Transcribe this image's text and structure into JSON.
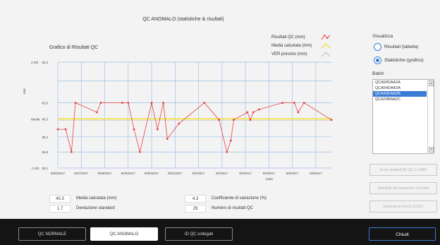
{
  "window": {
    "title": "QC ANOMALO (statistiche & risultati)"
  },
  "graph": {
    "title": "Grafico di Risultati QC",
    "y_unit": "mm",
    "x_axis_label": "Data"
  },
  "legend": {
    "items": [
      {
        "label": "Risultati QC (mm)",
        "color": "#e84040"
      },
      {
        "label": "Media calcolata (mm)",
        "color": "#f0e040"
      },
      {
        "label": "VER previsto (mm)",
        "color": "#cccccc"
      }
    ]
  },
  "sidebar": {
    "view_label": "Visualizza",
    "view_options": [
      {
        "label": "Risultati (tabella)",
        "selected": false
      },
      {
        "label": "Statistiche (grafico)",
        "selected": true
      }
    ],
    "batch_label": "Batch",
    "batches": [
      {
        "label": "QCA58SAA2A",
        "selected": false
      },
      {
        "label": "QCA54DAA2A",
        "selected": false
      },
      {
        "label": "QCA42EAA2B",
        "selected": true
      },
      {
        "label": "QCA20BAA2C",
        "selected": false
      }
    ],
    "buttons": [
      {
        "label": "Invia risultati IQ QC a LIMS"
      },
      {
        "label": "Risultati del paziente correlati"
      },
      {
        "label": "Esporta in Excel (CSV)"
      }
    ]
  },
  "stats": {
    "mean": {
      "value": "40.3",
      "label": "Media calcolata (mm)"
    },
    "sd": {
      "value": "1.7",
      "label": "Deviazione standard"
    },
    "cv": {
      "value": "4.3",
      "label": "Coefficiente di variazione (%)"
    },
    "count": {
      "value": "29",
      "label": "Numero di risultati QC"
    }
  },
  "footer": {
    "tabs": [
      {
        "label": "QC NORMALE",
        "active": false
      },
      {
        "label": "QC ANOMALO",
        "active": true
      },
      {
        "label": "ID QC collegati",
        "active": false
      }
    ],
    "close_label": "Chiudi"
  },
  "chart_data": {
    "type": "line",
    "xlabel": "Data",
    "ylabel": "mm",
    "y_ticks": [
      {
        "value": 46.3,
        "label": "46.3",
        "side": "3 SD"
      },
      {
        "value": 44.3,
        "label": "",
        "side": ""
      },
      {
        "value": 42.0,
        "label": "42.0",
        "side": ""
      },
      {
        "value": 40.3,
        "label": "40.3",
        "side": "Media"
      },
      {
        "value": 38.4,
        "label": "38.4",
        "side": ""
      },
      {
        "value": 36.8,
        "label": "36.8",
        "side": ""
      },
      {
        "value": 35.1,
        "label": "35.1",
        "side": "-3 SD"
      }
    ],
    "ylim": [
      35.1,
      46.3
    ],
    "mean": 40.3,
    "date_ticks": [
      "8/26/2017",
      "8/27/2017",
      "8/28/2017",
      "8/29/2017",
      "8/30/2017",
      "8/31/2017",
      "9/1/2017",
      "9/2/2017",
      "9/3/2017",
      "9/4/2017",
      "9/5/2017",
      "9/6/2017"
    ],
    "x_range": [
      "8/26/2017 00:00",
      "9/6/2017 16:00"
    ],
    "series": [
      {
        "x": [
          "8/26/2017 00:00",
          "8/26/2017 08:00",
          "8/26/2017 14:00",
          "8/26/2017 18:00",
          "8/27/2017 16:00",
          "8/27/2017 20:00",
          "8/28/2017 18:00",
          "8/29/2017 00:00",
          "8/29/2017 06:00",
          "8/29/2017 12:00",
          "8/30/2017 00:00",
          "8/30/2017 06:00",
          "8/30/2017 12:00",
          "8/30/2017 16:00",
          "8/31/2017 04:00",
          "9/1/2017 06:00",
          "9/1/2017 21:00",
          "9/2/2017 05:00",
          "9/2/2017 09:00",
          "9/2/2017 12:00",
          "9/3/2017 02:00",
          "9/3/2017 05:00",
          "9/3/2017 08:00",
          "9/3/2017 14:00",
          "9/4/2017 14:00",
          "9/5/2017 02:00",
          "9/5/2017 06:00",
          "9/5/2017 12:00",
          "9/6/2017 16:00"
        ],
        "values": [
          39.2,
          39.2,
          36.8,
          42.0,
          41.0,
          42.0,
          42.0,
          42.0,
          39.2,
          36.8,
          42.0,
          39.2,
          42.0,
          38.2,
          39.8,
          42.0,
          40.2,
          36.8,
          38.0,
          40.2,
          41.0,
          40.2,
          41.0,
          41.3,
          42.0,
          42.0,
          41.0,
          42.0,
          40.2
        ]
      }
    ]
  }
}
